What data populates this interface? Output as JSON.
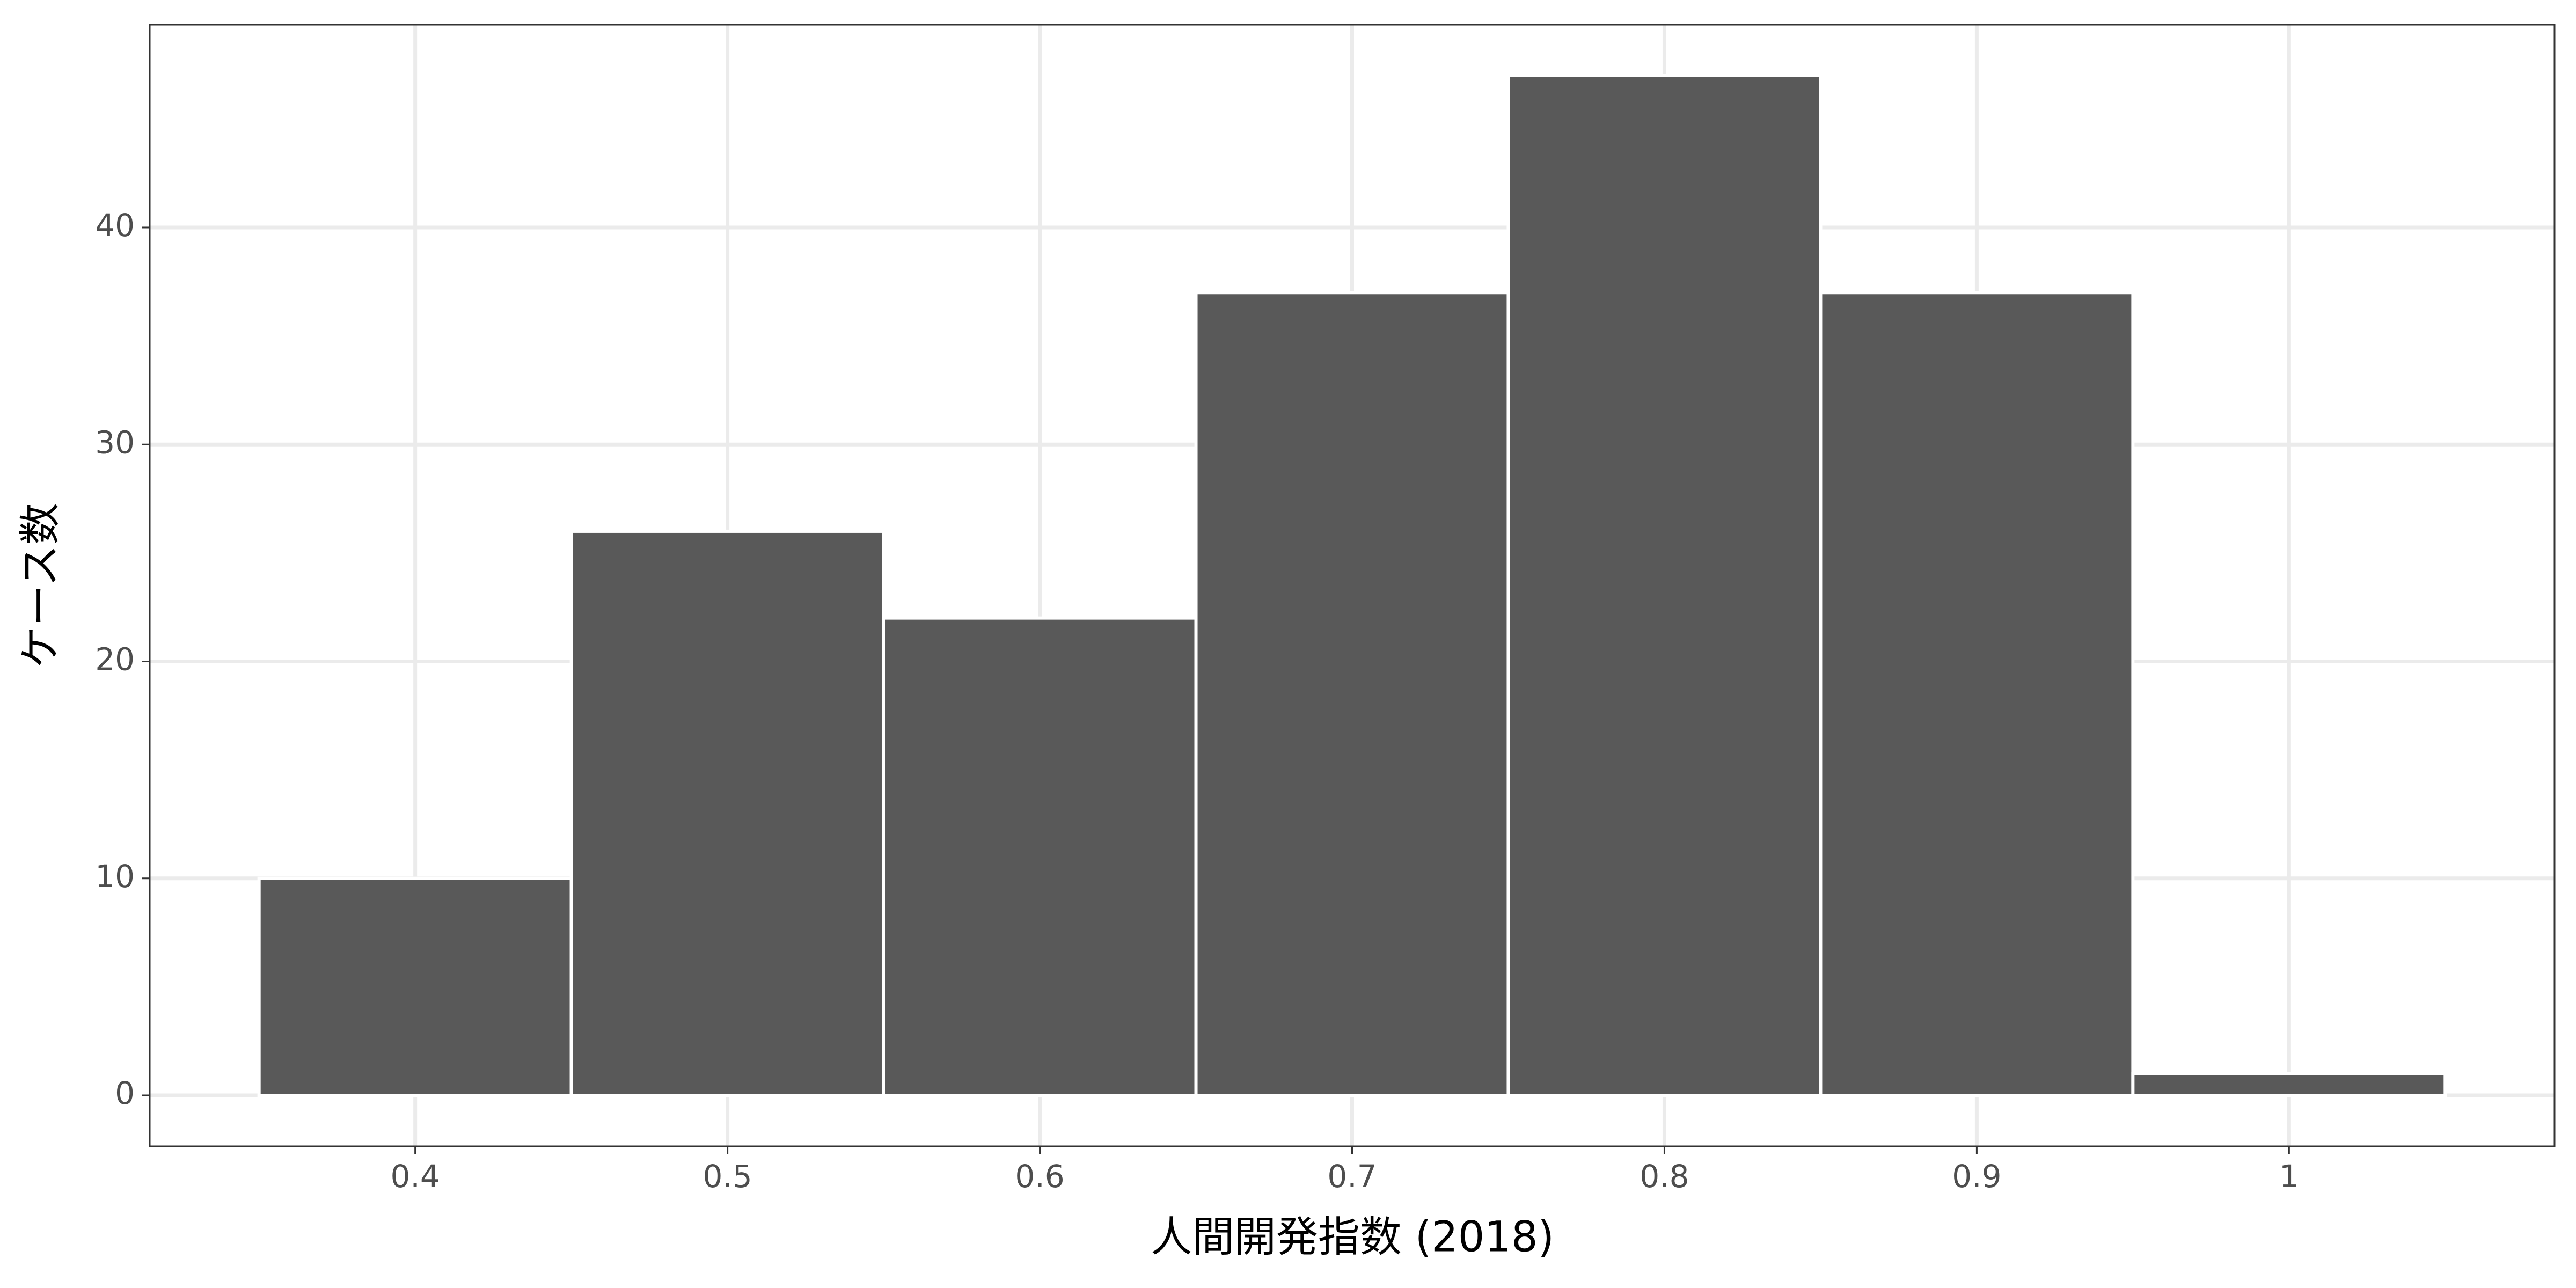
{
  "chart_data": {
    "type": "histogram",
    "x_label": "人間開発指数 (2018)",
    "y_label": "ケース数",
    "bins": [
      0.35,
      0.45,
      0.55,
      0.65,
      0.75,
      0.85,
      0.95,
      1.05
    ],
    "values": [
      10,
      26,
      22,
      37,
      47,
      37,
      1
    ],
    "color": "#595959",
    "xlim": [
      0.315,
      1.085
    ],
    "xticks": [
      0.4,
      0.5,
      0.6,
      0.7,
      0.8,
      0.9,
      1
    ],
    "ylim": [
      -2.35,
      49.35
    ],
    "yticks": [
      0,
      10,
      20,
      30,
      40
    ],
    "grid": true
  }
}
